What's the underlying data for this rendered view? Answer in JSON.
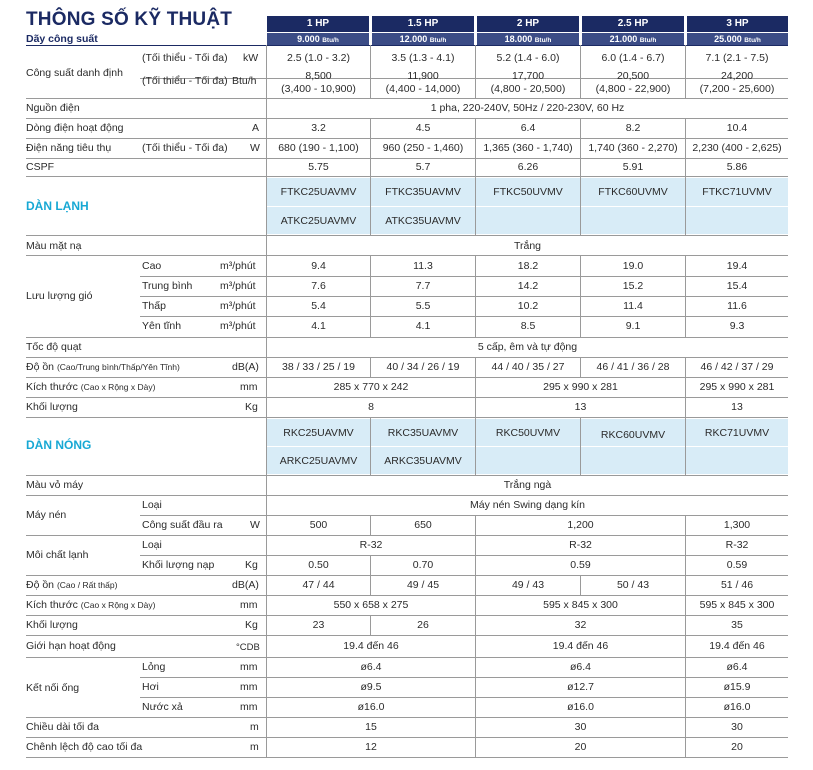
{
  "title": "THÔNG SỐ KỸ THUẬT",
  "series_label": "Dãy công suất",
  "models": [
    {
      "hp": "1 HP",
      "btu": "9.000",
      "unit": "Btu/h"
    },
    {
      "hp": "1.5 HP",
      "btu": "12.000",
      "unit": "Btu/h"
    },
    {
      "hp": "2 HP",
      "btu": "18.000",
      "unit": "Btu/h"
    },
    {
      "hp": "2.5 HP",
      "btu": "21.000",
      "unit": "Btu/h"
    },
    {
      "hp": "3 HP",
      "btu": "25.000",
      "unit": "Btu/h"
    }
  ],
  "rows": {
    "capacity": {
      "label": "Công suất danh định",
      "sub1": "(Tối thiểu - Tối đa)",
      "unit1": "kW",
      "sub2": "(Tối thiểu - Tối đa)",
      "unit2": "Btu/h",
      "kw": [
        "2.5 (1.0 - 3.2)",
        "3.5 (1.3 - 4.1)",
        "5.2 (1.4 - 6.0)",
        "6.0 (1.4 - 6.7)",
        "7.1 (2.1 - 7.5)"
      ],
      "btu_main": [
        "8,500",
        "11,900",
        "17,700",
        "20,500",
        "24,200"
      ],
      "btu_range": [
        "(3,400 - 10,900)",
        "(4,400 - 14,000)",
        "(4,800 - 20,500)",
        "(4,800 - 22,900)",
        "(7,200 - 25,600)"
      ]
    },
    "power": {
      "label": "Nguồn điện",
      "value": "1 pha, 220-240V, 50Hz / 220-230V, 60 Hz"
    },
    "current": {
      "label": "Dòng điện hoạt động",
      "unit": "A",
      "values": [
        "3.2",
        "4.5",
        "6.4",
        "8.2",
        "10.4"
      ]
    },
    "consumption": {
      "label": "Điện năng tiêu thụ",
      "sub": "(Tối thiểu - Tối đa)",
      "unit": "W",
      "values": [
        "680 (190 - 1,100)",
        "960 (250 - 1,460)",
        "1,365 (360 - 1,740)",
        "1,740 (360 - 2,270)",
        "2,230 (400 - 2,625)"
      ]
    },
    "cspf": {
      "label": "CSPF",
      "values": [
        "5.75",
        "5.7",
        "6.26",
        "5.91",
        "5.86"
      ]
    }
  },
  "indoor": {
    "section": "DÀN LẠNH",
    "models_1": [
      "FTKC25UAVMV",
      "FTKC35UAVMV",
      "FTKC50UVMV",
      "FTKC60UVMV",
      "FTKC71UVMV"
    ],
    "models_2": [
      "ATKC25UAVMV",
      "ATKC35UAVMV",
      "",
      "",
      ""
    ],
    "panel_color": {
      "label": "Màu mặt nạ",
      "value": "Trắng"
    },
    "airflow": {
      "label": "Lưu lượng gió",
      "unit": "m³/phút",
      "levels": [
        {
          "name": "Cao",
          "values": [
            "9.4",
            "11.3",
            "18.2",
            "19.0",
            "19.4"
          ]
        },
        {
          "name": "Trung bình",
          "values": [
            "7.6",
            "7.7",
            "14.2",
            "15.2",
            "15.4"
          ]
        },
        {
          "name": "Thấp",
          "values": [
            "5.4",
            "5.5",
            "10.2",
            "11.4",
            "11.6"
          ]
        },
        {
          "name": "Yên tĩnh",
          "values": [
            "4.1",
            "4.1",
            "8.5",
            "9.1",
            "9.3"
          ]
        }
      ]
    },
    "fan_speed": {
      "label": "Tốc độ quạt",
      "value": "5 cấp, êm và tự động"
    },
    "noise": {
      "label": "Độ ồn",
      "sub": "(Cao/Trung bình/Thấp/Yên Tĩnh)",
      "unit": "dB(A)",
      "values": [
        "38 / 33 / 25 / 19",
        "40 / 34 / 26 / 19",
        "44 / 40 / 35 / 27",
        "46 / 41 / 36 / 28",
        "46 / 42 / 37 / 29"
      ]
    },
    "dimensions": {
      "label": "Kích thước",
      "sub": "(Cao x Rộng x Dày)",
      "unit": "mm",
      "values": [
        "285 x 770 x 242",
        "295 x 990 x 281",
        "295 x 990 x 281"
      ]
    },
    "weight": {
      "label": "Khối lượng",
      "unit": "Kg",
      "values": [
        "8",
        "13",
        "13"
      ]
    }
  },
  "outdoor": {
    "section": "DÀN NÓNG",
    "models_1": [
      "RKC25UAVMV",
      "RKC35UAVMV",
      "RKC50UVMV",
      "RKC60UVMV",
      "RKC71UVMV"
    ],
    "models_2": [
      "ARKC25UAVMV",
      "ARKC35UAVMV",
      "",
      "",
      ""
    ],
    "casing_color": {
      "label": "Màu vỏ máy",
      "value": "Trắng ngà"
    },
    "compressor": {
      "label": "Máy nén",
      "type_label": "Loại",
      "type_value": "Máy nén Swing dạng kín",
      "output_label": "Công suất đầu ra",
      "unit": "W",
      "values": [
        "500",
        "650",
        "1,200",
        "1,300"
      ]
    },
    "refrigerant": {
      "label": "Môi chất lạnh",
      "type_label": "Loại",
      "types": [
        "R-32",
        "R-32",
        "R-32"
      ],
      "charge_label": "Khối lượng nạp",
      "unit": "Kg",
      "charges": [
        "0.50",
        "0.70",
        "0.59",
        "0.59"
      ]
    },
    "noise": {
      "label": "Độ ồn",
      "sub": "(Cao / Rất thấp)",
      "unit": "dB(A)",
      "values": [
        "47 / 44",
        "49 / 45",
        "49 / 43",
        "50 / 43",
        "51 / 46"
      ]
    },
    "dimensions": {
      "label": "Kích thước",
      "sub": "(Cao x Rộng x Dày)",
      "unit": "mm",
      "values": [
        "550 x 658 x 275",
        "595 x 845 x 300",
        "595 x 845 x 300"
      ]
    },
    "weight": {
      "label": "Khối lượng",
      "unit": "Kg",
      "values": [
        "23",
        "26",
        "32",
        "35"
      ]
    },
    "op_range": {
      "label": "Giới hạn hoạt động",
      "unit": "°CDB",
      "values": [
        "19.4 đến 46",
        "19.4 đến 46",
        "19.4 đến 46"
      ]
    },
    "piping": {
      "label": "Kết nối ống",
      "unit": "mm",
      "lines": [
        {
          "name": "Lỏng",
          "values": [
            "ø6.4",
            "ø6.4",
            "ø6.4"
          ]
        },
        {
          "name": "Hơi",
          "values": [
            "ø9.5",
            "ø12.7",
            "ø15.9"
          ]
        },
        {
          "name": "Nước xả",
          "values": [
            "ø16.0",
            "ø16.0",
            "ø16.0"
          ]
        }
      ]
    },
    "pipe_length": {
      "label": "Chiều dài tối đa",
      "unit": "m",
      "values": [
        "15",
        "30",
        "30"
      ]
    },
    "height_diff": {
      "label": "Chênh lệch độ cao tối đa",
      "unit": "m",
      "values": [
        "12",
        "20",
        "20"
      ]
    }
  }
}
